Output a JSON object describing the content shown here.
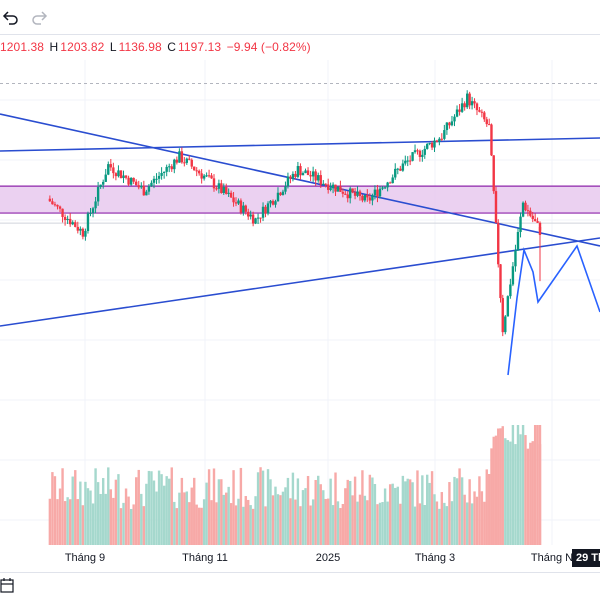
{
  "toolbar": {
    "undo_icon": "undo-icon",
    "redo_icon": "redo-icon"
  },
  "ohlc": {
    "o_value": "1201.38",
    "h_label": "H",
    "h_value": "1203.82",
    "l_label": "L",
    "l_value": "1136.98",
    "c_label": "C",
    "c_value": "1197.13",
    "change": "−9.94 (−0.82%)"
  },
  "colors": {
    "up": "#089981",
    "down": "#f23645",
    "vol_up": "#a5d8cd",
    "vol_down": "#f7a9a7",
    "trendline": "#2a4dd0",
    "zone_fill": "#e7c9ef",
    "zone_border": "#8e24aa",
    "forecast": "#2962ff"
  },
  "x_axis": {
    "labels": [
      "Tháng 9",
      "Tháng 11",
      "2025",
      "Tháng 3",
      "Tháng N"
    ],
    "crosshair_label": "29 Th"
  },
  "bottom_bar": {
    "calendar_icon": "calendar-icon"
  },
  "chart_data": {
    "type": "candlestick",
    "title": "",
    "xlabel": "",
    "ylabel": "",
    "x_tick_labels": [
      "Tháng 9",
      "Tháng 11",
      "2025",
      "Tháng 3"
    ],
    "ylim": [
      960,
      1400
    ],
    "last_candle": {
      "open": 1201.38,
      "high": 1203.82,
      "low": 1136.98,
      "close": 1197.13,
      "change": -9.94,
      "change_pct": -0.82
    },
    "key_points": [
      {
        "date": "2024-07-15",
        "close": 1235
      },
      {
        "date": "2024-08-05",
        "close": 1195
      },
      {
        "date": "2024-08-20",
        "close": 1275
      },
      {
        "date": "2024-09-10",
        "close": 1245
      },
      {
        "date": "2024-10-01",
        "close": 1285
      },
      {
        "date": "2024-10-20",
        "close": 1255
      },
      {
        "date": "2024-11-15",
        "close": 1210
      },
      {
        "date": "2024-12-10",
        "close": 1270
      },
      {
        "date": "2024-12-25",
        "close": 1255
      },
      {
        "date": "2025-01-20",
        "close": 1232
      },
      {
        "date": "2025-02-10",
        "close": 1275
      },
      {
        "date": "2025-03-05",
        "close": 1310
      },
      {
        "date": "2025-03-20",
        "close": 1355
      },
      {
        "date": "2025-04-02",
        "close": 1320
      },
      {
        "date": "2025-04-10",
        "close": 1080
      },
      {
        "date": "2025-04-22",
        "close": 1230
      },
      {
        "date": "2025-05-02",
        "close": 1197
      }
    ],
    "horizontal_levels": [
      1372,
      1206
    ],
    "zone": {
      "from": 1218,
      "to": 1250
    },
    "volume": "shown"
  }
}
